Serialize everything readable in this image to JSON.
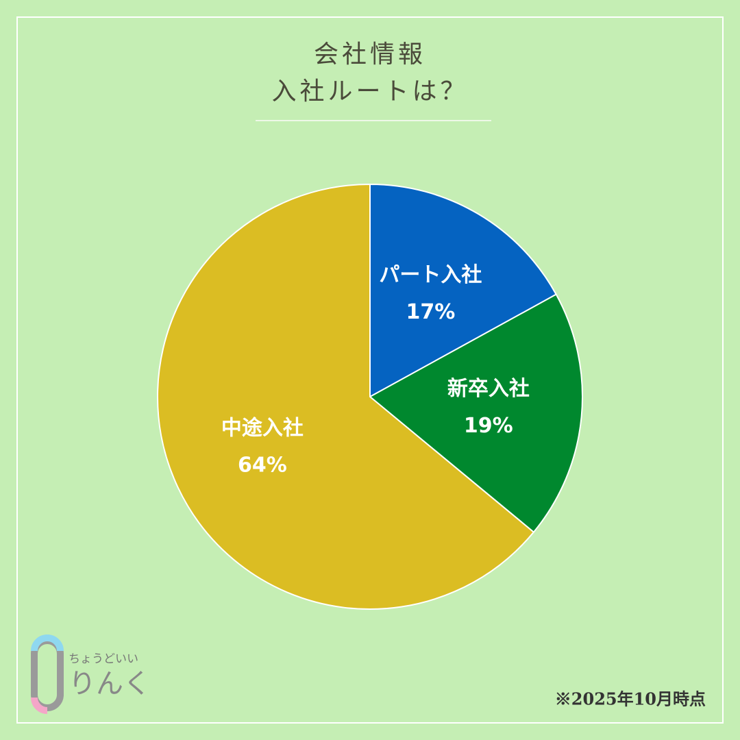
{
  "chart_data": {
    "type": "pie",
    "title": [
      "会社情報",
      "入社ルートは？"
    ],
    "categories": [
      "パート入社",
      "新卒入社",
      "中途入社"
    ],
    "values": [
      17,
      19,
      64
    ],
    "value_labels": [
      "17%",
      "19%",
      "64%"
    ],
    "colors": [
      "#0563c1",
      "#00882e",
      "#dbbd23"
    ],
    "note": "※2025年10月時点"
  },
  "logo": {
    "tagline": "ちょうどいい",
    "name": "りんく"
  }
}
